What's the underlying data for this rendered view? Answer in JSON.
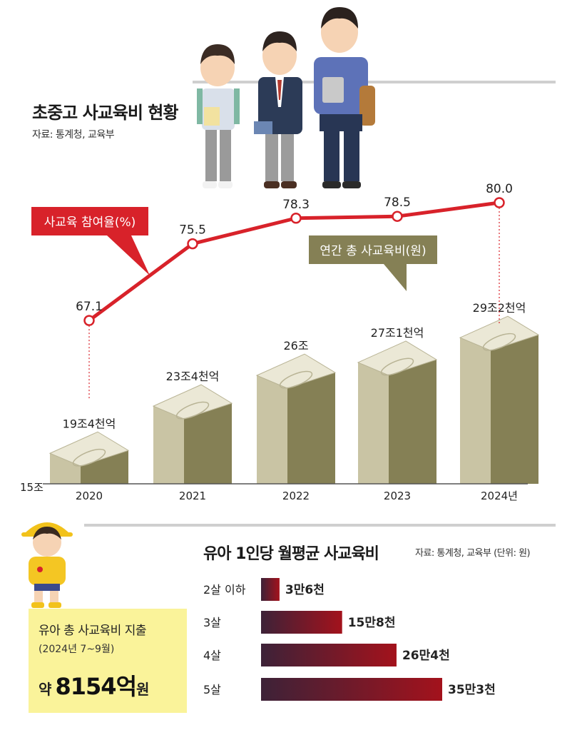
{
  "top": {
    "title": "초중고 사교육비 현황",
    "source": "자료: 통계청, 교육부",
    "participation_tag": "사교육 참여율(%)",
    "spending_tag": "연간 총 사교육비(원)",
    "y_baseline_label": "15조"
  },
  "bottom": {
    "title": "유아 1인당 월평균 사교육비",
    "source": "자료: 통계청, 교육부 (단위: 원)",
    "box_title": "유아 총 사교육비 지출",
    "box_period": "(2024년 7~9월)",
    "box_prefix": "약",
    "box_amount": "8154억",
    "box_unit": "원"
  },
  "chart_data": [
    {
      "type": "bar",
      "categories": [
        "2020",
        "2021",
        "2022",
        "2023",
        "2024년"
      ],
      "values_trillion_won": [
        19.4,
        23.4,
        26.0,
        27.1,
        29.2
      ],
      "value_labels": [
        "19조4천억",
        "23조4천억",
        "26조",
        "27조1천억",
        "29조2천억"
      ],
      "series_name": "연간 총 사교육비(원)",
      "ylim": [
        15,
        30
      ],
      "ylim_label": "15조"
    },
    {
      "type": "line",
      "x": [
        "2020",
        "2021",
        "2022",
        "2023",
        "2024년"
      ],
      "values": [
        67.1,
        75.5,
        78.3,
        78.5,
        80.0
      ],
      "value_labels": [
        "67.1",
        "75.5",
        "78.3",
        "78.5",
        "80.0"
      ],
      "series_name": "사교육 참여율(%)",
      "ylim": [
        60,
        85
      ]
    },
    {
      "type": "bar",
      "orientation": "horizontal",
      "categories": [
        "2살 이하",
        "3살",
        "4살",
        "5살"
      ],
      "values_won": [
        36000,
        158000,
        264000,
        353000
      ],
      "value_labels": [
        "3만6천",
        "15만8천",
        "26만4천",
        "35만3천"
      ],
      "title": "유아 1인당 월평균 사교육비"
    }
  ],
  "colors": {
    "line": "#d8222a",
    "bar_front": "#858055",
    "bar_side": "#c9c4a4",
    "bar_top": "#ebe8d6",
    "hbar_start": "#3d2238",
    "hbar_end": "#a3121c",
    "yellow_box": "#faf39a"
  },
  "icons": [
    "student-illustration",
    "child-illustration",
    "money-stack-icon"
  ]
}
